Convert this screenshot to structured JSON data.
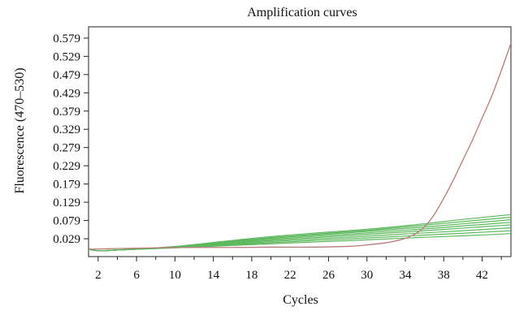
{
  "chart_data": {
    "type": "line",
    "title": "Amplification curves",
    "xlabel": "Cycles",
    "ylabel": "Fluorescence (470–530)",
    "xlim": [
      1,
      45
    ],
    "ylim": [
      -0.02,
      0.61
    ],
    "x_ticks": [
      2,
      6,
      10,
      14,
      18,
      22,
      26,
      30,
      34,
      38,
      42
    ],
    "x_minor_ticks": [
      4,
      8,
      12,
      16,
      20,
      24,
      28,
      32,
      36,
      40,
      44
    ],
    "y_ticks": [
      0.029,
      0.079,
      0.129,
      0.179,
      0.229,
      0.279,
      0.329,
      0.379,
      0.429,
      0.479,
      0.529,
      0.579
    ],
    "y_tick_labels": [
      "0.029",
      "0.079",
      "0.129",
      "0.179",
      "0.229",
      "0.279",
      "0.329",
      "0.379",
      "0.429",
      "0.479",
      "0.529",
      "0.579"
    ],
    "grid": false,
    "colors": {
      "positive": "#b97a7a",
      "negative": "#5cb85c"
    },
    "series": [
      {
        "color": "#b97a7a",
        "x": [
          1,
          4,
          8,
          12,
          16,
          20,
          24,
          28,
          30,
          32,
          33,
          34,
          35,
          36,
          37,
          38,
          39,
          40,
          41,
          42,
          43,
          44,
          45
        ],
        "y": [
          0.0,
          0.002,
          0.004,
          0.005,
          0.005,
          0.006,
          0.006,
          0.008,
          0.012,
          0.018,
          0.023,
          0.03,
          0.042,
          0.062,
          0.095,
          0.14,
          0.19,
          0.245,
          0.3,
          0.36,
          0.42,
          0.49,
          0.565
        ]
      },
      {
        "color": "#5cb85c",
        "x": [
          1,
          2,
          4,
          10,
          20,
          30,
          36,
          40,
          45
        ],
        "y": [
          0.003,
          -0.004,
          -0.002,
          0.008,
          0.035,
          0.055,
          0.07,
          0.082,
          0.095
        ]
      },
      {
        "color": "#5cb85c",
        "x": [
          1,
          2,
          4,
          10,
          20,
          30,
          36,
          40,
          45
        ],
        "y": [
          0.002,
          -0.004,
          -0.002,
          0.007,
          0.032,
          0.052,
          0.066,
          0.076,
          0.088
        ]
      },
      {
        "color": "#5cb85c",
        "x": [
          1,
          2,
          4,
          10,
          20,
          30,
          36,
          40,
          45
        ],
        "y": [
          0.002,
          -0.004,
          -0.002,
          0.007,
          0.03,
          0.049,
          0.061,
          0.07,
          0.081
        ]
      },
      {
        "color": "#5cb85c",
        "x": [
          1,
          2,
          4,
          10,
          20,
          30,
          36,
          40,
          45
        ],
        "y": [
          0.001,
          -0.004,
          -0.002,
          0.006,
          0.027,
          0.045,
          0.056,
          0.064,
          0.074
        ]
      },
      {
        "color": "#5cb85c",
        "x": [
          1,
          2,
          4,
          10,
          20,
          30,
          36,
          40,
          45
        ],
        "y": [
          0.001,
          -0.004,
          -0.002,
          0.006,
          0.024,
          0.041,
          0.051,
          0.058,
          0.067
        ]
      },
      {
        "color": "#5cb85c",
        "x": [
          1,
          2,
          4,
          10,
          20,
          30,
          36,
          40,
          45
        ],
        "y": [
          0.001,
          -0.004,
          -0.002,
          0.005,
          0.021,
          0.036,
          0.045,
          0.051,
          0.059
        ]
      },
      {
        "color": "#5cb85c",
        "x": [
          1,
          2,
          4,
          10,
          20,
          30,
          36,
          40,
          45
        ],
        "y": [
          0.0,
          -0.004,
          -0.002,
          0.005,
          0.018,
          0.031,
          0.039,
          0.044,
          0.051
        ]
      },
      {
        "color": "#5cb85c",
        "x": [
          1,
          2,
          4,
          10,
          20,
          30,
          36,
          40,
          45
        ],
        "y": [
          0.0,
          -0.004,
          -0.002,
          0.004,
          0.015,
          0.026,
          0.033,
          0.037,
          0.043
        ]
      }
    ]
  }
}
